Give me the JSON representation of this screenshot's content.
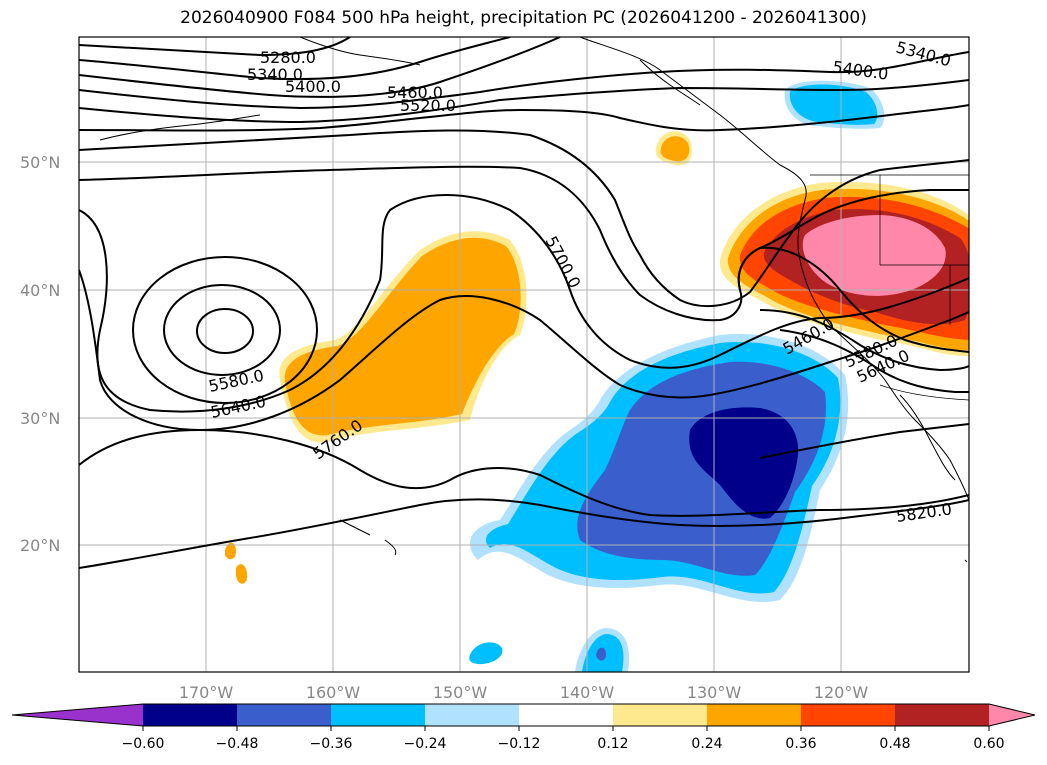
{
  "title": "2026040900 F084 500 hPa height, precipitation PC (2026041200 - 2026041300)",
  "lat_labels": [
    "50°N",
    "40°N",
    "30°N",
    "20°N"
  ],
  "lon_labels": [
    "170°W",
    "160°W",
    "150°W",
    "140°W",
    "130°W",
    "120°W"
  ],
  "contour_labels": [
    "5280.0",
    "5340.0",
    "5400.0",
    "5460.0",
    "5520.0",
    "5340.0",
    "5400.0",
    "5700.0",
    "5580.0",
    "5640.0",
    "5760.0",
    "5460.0",
    "5580.0",
    "5640.0",
    "5820.0"
  ],
  "colorbar": {
    "ticks": [
      "−0.60",
      "−0.48",
      "−0.36",
      "−0.24",
      "−0.12",
      "0.12",
      "0.24",
      "0.36",
      "0.48",
      "0.60"
    ],
    "colors": [
      "#9932cc",
      "#00008b",
      "#3a5fcd",
      "#00bfff",
      "#b0e2ff",
      "#ffffff",
      "#ffe98f",
      "#ffa500",
      "#ff4500",
      "#b22222",
      "#ff88aa"
    ]
  }
}
